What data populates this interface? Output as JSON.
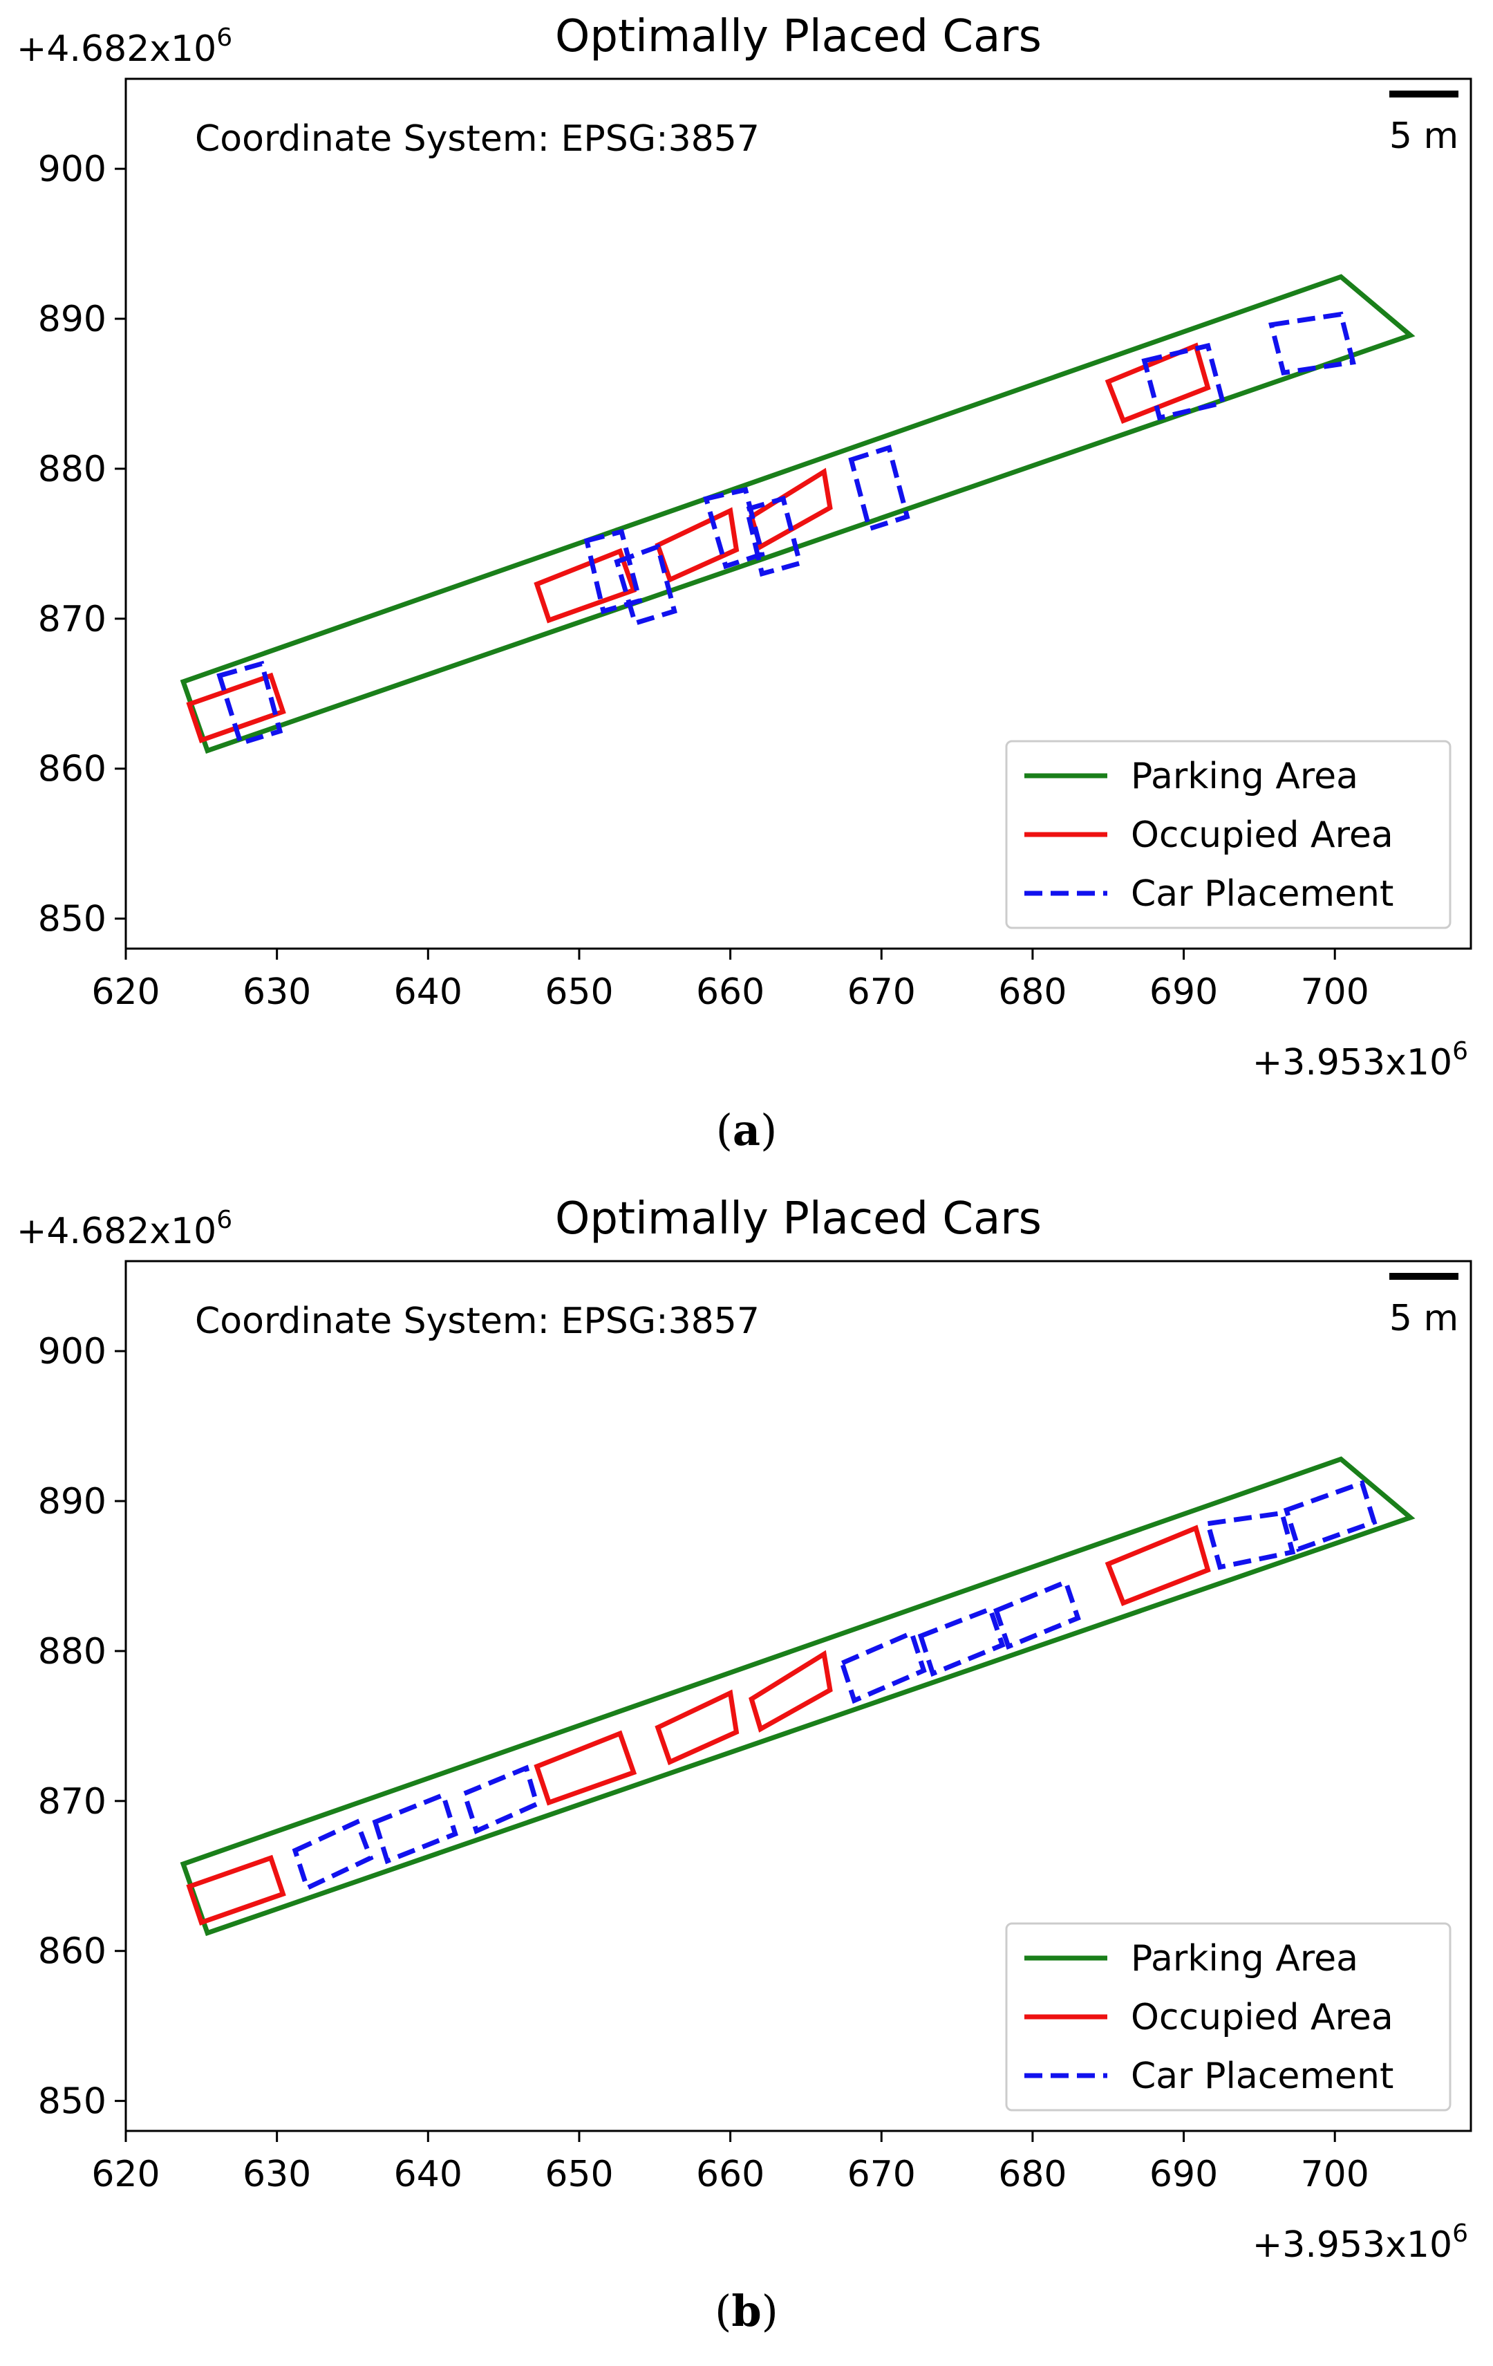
{
  "figure": {
    "panels": [
      {
        "label_open": "(",
        "label_letter": "a",
        "label_close": ")"
      },
      {
        "label_open": "(",
        "label_letter": "b",
        "label_close": ")"
      }
    ]
  },
  "chart_data": [
    {
      "type": "line",
      "panel": "a",
      "title": "Optimally Placed Cars",
      "xlabel": "",
      "ylabel": "",
      "x_offset_label": "+3.953x10",
      "x_offset_exp": "6",
      "y_offset_label": "+4.682x10",
      "y_offset_exp": "6",
      "xlim": [
        620,
        709
      ],
      "ylim": [
        848,
        906
      ],
      "xticks": [
        620,
        630,
        640,
        650,
        660,
        670,
        680,
        690,
        700
      ],
      "yticks": [
        850,
        860,
        870,
        880,
        890,
        900
      ],
      "annotation": "Coordinate System: EPSG:3857",
      "scalebar_label": "5 m",
      "legend_location": "lower-right",
      "legend": [
        {
          "name": "Parking Area",
          "color": "#1a7f1a",
          "style": "solid"
        },
        {
          "name": "Occupied Area",
          "color": "#ee1111",
          "style": "solid"
        },
        {
          "name": "Car Placement",
          "color": "#1111ee",
          "style": "dashed"
        }
      ],
      "parking_area": [
        [
          623.8,
          865.8
        ],
        [
          700.4,
          892.8
        ],
        [
          705,
          888.9
        ],
        [
          625.4,
          861.2
        ]
      ],
      "occupied_areas": [
        [
          [
            624.2,
            864.3
          ],
          [
            629.6,
            866.2
          ],
          [
            630.4,
            863.8
          ],
          [
            625,
            861.9
          ]
        ],
        [
          [
            647.2,
            872.3
          ],
          [
            652.7,
            874.5
          ],
          [
            653.6,
            871.9
          ],
          [
            648,
            869.9
          ]
        ],
        [
          [
            655.2,
            874.9
          ],
          [
            660,
            877.2
          ],
          [
            660.4,
            874.6
          ],
          [
            656,
            872.6
          ]
        ],
        [
          [
            661.4,
            876.8
          ],
          [
            666.2,
            879.8
          ],
          [
            666.6,
            877.4
          ],
          [
            662,
            874.8
          ]
        ],
        [
          [
            685,
            885.8
          ],
          [
            690.8,
            888.2
          ],
          [
            691.6,
            885.4
          ],
          [
            686,
            883.2
          ]
        ]
      ],
      "car_placements": [
        [
          [
            626.2,
            866.2
          ],
          [
            629,
            867
          ],
          [
            630.2,
            862.5
          ],
          [
            627.6,
            861.7
          ]
        ],
        [
          [
            650.5,
            875.2
          ],
          [
            652.8,
            875.8
          ],
          [
            654,
            871.2
          ],
          [
            651.6,
            870.5
          ]
        ],
        [
          [
            652.5,
            873.8
          ],
          [
            655.2,
            874.8
          ],
          [
            656.3,
            870.5
          ],
          [
            653.7,
            869.7
          ]
        ],
        [
          [
            658.4,
            878
          ],
          [
            661,
            878.6
          ],
          [
            662.1,
            874.3
          ],
          [
            659.7,
            873.5
          ]
        ],
        [
          [
            661.1,
            877.3
          ],
          [
            663.5,
            878
          ],
          [
            664.6,
            873.7
          ],
          [
            662.1,
            873
          ]
        ],
        [
          [
            668,
            880.6
          ],
          [
            670.5,
            881.4
          ],
          [
            671.7,
            876.8
          ],
          [
            669.2,
            876
          ]
        ],
        [
          [
            687.4,
            887.2
          ],
          [
            691.6,
            888.2
          ],
          [
            692.6,
            884.4
          ],
          [
            688.4,
            883.4
          ]
        ],
        [
          [
            695.8,
            889.6
          ],
          [
            700.4,
            890.3
          ],
          [
            701.2,
            887.1
          ],
          [
            696.6,
            886.4
          ]
        ]
      ]
    },
    {
      "type": "line",
      "panel": "b",
      "title": "Optimally Placed Cars",
      "xlabel": "",
      "ylabel": "",
      "x_offset_label": "+3.953x10",
      "x_offset_exp": "6",
      "y_offset_label": "+4.682x10",
      "y_offset_exp": "6",
      "xlim": [
        620,
        709
      ],
      "ylim": [
        848,
        906
      ],
      "xticks": [
        620,
        630,
        640,
        650,
        660,
        670,
        680,
        690,
        700
      ],
      "yticks": [
        850,
        860,
        870,
        880,
        890,
        900
      ],
      "annotation": "Coordinate System: EPSG:3857",
      "scalebar_label": "5 m",
      "legend_location": "lower-right",
      "legend": [
        {
          "name": "Parking Area",
          "color": "#1a7f1a",
          "style": "solid"
        },
        {
          "name": "Occupied Area",
          "color": "#ee1111",
          "style": "solid"
        },
        {
          "name": "Car Placement",
          "color": "#1111ee",
          "style": "dashed"
        }
      ],
      "parking_area": [
        [
          623.8,
          865.8
        ],
        [
          700.4,
          892.8
        ],
        [
          705,
          888.9
        ],
        [
          625.4,
          861.2
        ]
      ],
      "occupied_areas": [
        [
          [
            624.2,
            864.3
          ],
          [
            629.6,
            866.2
          ],
          [
            630.4,
            863.8
          ],
          [
            625,
            861.9
          ]
        ],
        [
          [
            647.2,
            872.3
          ],
          [
            652.7,
            874.5
          ],
          [
            653.6,
            871.9
          ],
          [
            648,
            869.9
          ]
        ],
        [
          [
            655.2,
            874.9
          ],
          [
            660,
            877.2
          ],
          [
            660.4,
            874.6
          ],
          [
            656,
            872.6
          ]
        ],
        [
          [
            661.4,
            876.8
          ],
          [
            666.2,
            879.8
          ],
          [
            666.6,
            877.4
          ],
          [
            662,
            874.8
          ]
        ],
        [
          [
            685,
            885.8
          ],
          [
            690.8,
            888.2
          ],
          [
            691.6,
            885.4
          ],
          [
            686,
            883.2
          ]
        ]
      ],
      "car_placements": [
        [
          [
            631.2,
            866.7
          ],
          [
            635.3,
            868.6
          ],
          [
            636.2,
            866.2
          ],
          [
            632,
            864.2
          ]
        ],
        [
          [
            636.5,
            868.6
          ],
          [
            641,
            870.4
          ],
          [
            641.8,
            867.8
          ],
          [
            637.3,
            866
          ]
        ],
        [
          [
            642.4,
            870.5
          ],
          [
            646.5,
            872.2
          ],
          [
            647.2,
            869.8
          ],
          [
            643.2,
            868
          ]
        ],
        [
          [
            667.4,
            879.2
          ],
          [
            672,
            881.2
          ],
          [
            672.8,
            878.7
          ],
          [
            668.2,
            876.7
          ]
        ],
        [
          [
            672.6,
            881
          ],
          [
            677.2,
            882.8
          ],
          [
            678,
            880.4
          ],
          [
            673.4,
            878.5
          ]
        ],
        [
          [
            677.6,
            882.7
          ],
          [
            682.2,
            884.6
          ],
          [
            683,
            882.2
          ],
          [
            678.4,
            880.3
          ]
        ],
        [
          [
            691.6,
            888.5
          ],
          [
            696.5,
            889.2
          ],
          [
            697.2,
            886.6
          ],
          [
            692.4,
            885.6
          ]
        ],
        [
          [
            696.8,
            889.4
          ],
          [
            701.8,
            891.2
          ],
          [
            702.6,
            888.6
          ],
          [
            697.6,
            886.8
          ]
        ]
      ]
    }
  ]
}
